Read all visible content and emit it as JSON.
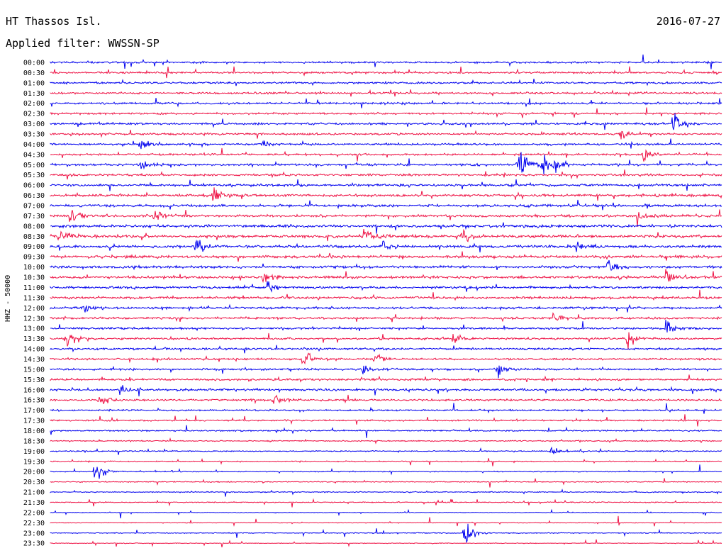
{
  "header": {
    "station": "HT Thassos Isl.",
    "date": "2016-07-27",
    "filter": "Applied filter: WWSSN-SP"
  },
  "chart_data": {
    "type": "line",
    "title": "HT Thassos Isl.",
    "ylabel": "HHZ - 50000",
    "colors": {
      "even_rows": "#0000ee",
      "odd_rows": "#ee1144"
    },
    "rows": [
      "00:00",
      "00:30",
      "01:00",
      "01:30",
      "02:00",
      "02:30",
      "03:00",
      "03:30",
      "04:00",
      "04:30",
      "05:00",
      "05:30",
      "06:00",
      "06:30",
      "07:00",
      "07:30",
      "08:00",
      "08:30",
      "09:00",
      "09:30",
      "10:00",
      "10:30",
      "11:00",
      "11:30",
      "12:00",
      "12:30",
      "13:00",
      "13:30",
      "14:00",
      "14:30",
      "15:00",
      "15:30",
      "16:00",
      "16:30",
      "17:00",
      "17:30",
      "18:00",
      "18:30",
      "19:00",
      "19:30",
      "20:00",
      "20:30",
      "21:00",
      "21:30",
      "22:00",
      "22:30",
      "23:00",
      "23:30"
    ],
    "noise_level": [
      0.55,
      0.55,
      0.55,
      0.55,
      0.6,
      0.6,
      0.6,
      0.6,
      0.6,
      0.6,
      0.65,
      0.65,
      0.7,
      0.75,
      0.8,
      0.8,
      0.85,
      0.85,
      0.8,
      0.8,
      0.75,
      0.75,
      0.7,
      0.7,
      0.65,
      0.65,
      0.6,
      0.6,
      0.6,
      0.6,
      0.6,
      0.6,
      0.65,
      0.6,
      0.5,
      0.45,
      0.45,
      0.35,
      0.35,
      0.3,
      0.3,
      0.3,
      0.3,
      0.3,
      0.2,
      0.2,
      0.25,
      0.2
    ],
    "events": [
      {
        "row": 6,
        "minute": 27.8,
        "amplitude": 9
      },
      {
        "row": 7,
        "minute": 25.5,
        "amplitude": 3
      },
      {
        "row": 8,
        "minute": 4.0,
        "amplitude": 5
      },
      {
        "row": 8,
        "minute": 9.5,
        "amplitude": 2
      },
      {
        "row": 10,
        "minute": 20.9,
        "amplitude": 13
      },
      {
        "row": 10,
        "minute": 22.5,
        "amplitude": 6
      },
      {
        "row": 10,
        "minute": 22.0,
        "amplitude": 8
      },
      {
        "row": 10,
        "minute": 4.0,
        "amplitude": 4
      },
      {
        "row": 9,
        "minute": 26.5,
        "amplitude": 6
      },
      {
        "row": 13,
        "minute": 7.3,
        "amplitude": 6
      },
      {
        "row": 15,
        "minute": 0.9,
        "amplitude": 6
      },
      {
        "row": 15,
        "minute": 4.6,
        "amplitude": 5
      },
      {
        "row": 15,
        "minute": 26.2,
        "amplitude": 6
      },
      {
        "row": 17,
        "minute": 18.4,
        "amplitude": 5
      },
      {
        "row": 17,
        "minute": 0.4,
        "amplitude": 5
      },
      {
        "row": 17,
        "minute": 14.0,
        "amplitude": 4
      },
      {
        "row": 18,
        "minute": 6.5,
        "amplitude": 6
      },
      {
        "row": 18,
        "minute": 14.9,
        "amplitude": 4
      },
      {
        "row": 18,
        "minute": 23.5,
        "amplitude": 4
      },
      {
        "row": 20,
        "minute": 24.9,
        "amplitude": 7
      },
      {
        "row": 21,
        "minute": 9.5,
        "amplitude": 4
      },
      {
        "row": 21,
        "minute": 27.5,
        "amplitude": 6
      },
      {
        "row": 22,
        "minute": 9.7,
        "amplitude": 5
      },
      {
        "row": 24,
        "minute": 1.5,
        "amplitude": 3
      },
      {
        "row": 26,
        "minute": 27.5,
        "amplitude": 7
      },
      {
        "row": 25,
        "minute": 22.5,
        "amplitude": 4
      },
      {
        "row": 27,
        "minute": 0.7,
        "amplitude": 6
      },
      {
        "row": 27,
        "minute": 25.8,
        "amplitude": 6
      },
      {
        "row": 27,
        "minute": 18.0,
        "amplitude": 3
      },
      {
        "row": 29,
        "minute": 11.3,
        "amplitude": 8
      },
      {
        "row": 29,
        "minute": 14.5,
        "amplitude": 5
      },
      {
        "row": 30,
        "minute": 14.0,
        "amplitude": 4
      },
      {
        "row": 30,
        "minute": 20.0,
        "amplitude": 4
      },
      {
        "row": 32,
        "minute": 3.1,
        "amplitude": 3
      },
      {
        "row": 33,
        "minute": 2.2,
        "amplitude": 4
      },
      {
        "row": 33,
        "minute": 10.0,
        "amplitude": 5
      },
      {
        "row": 38,
        "minute": 22.4,
        "amplitude": 3
      },
      {
        "row": 40,
        "minute": 2.0,
        "amplitude": 7
      },
      {
        "row": 46,
        "minute": 18.5,
        "amplitude": 10
      }
    ]
  }
}
